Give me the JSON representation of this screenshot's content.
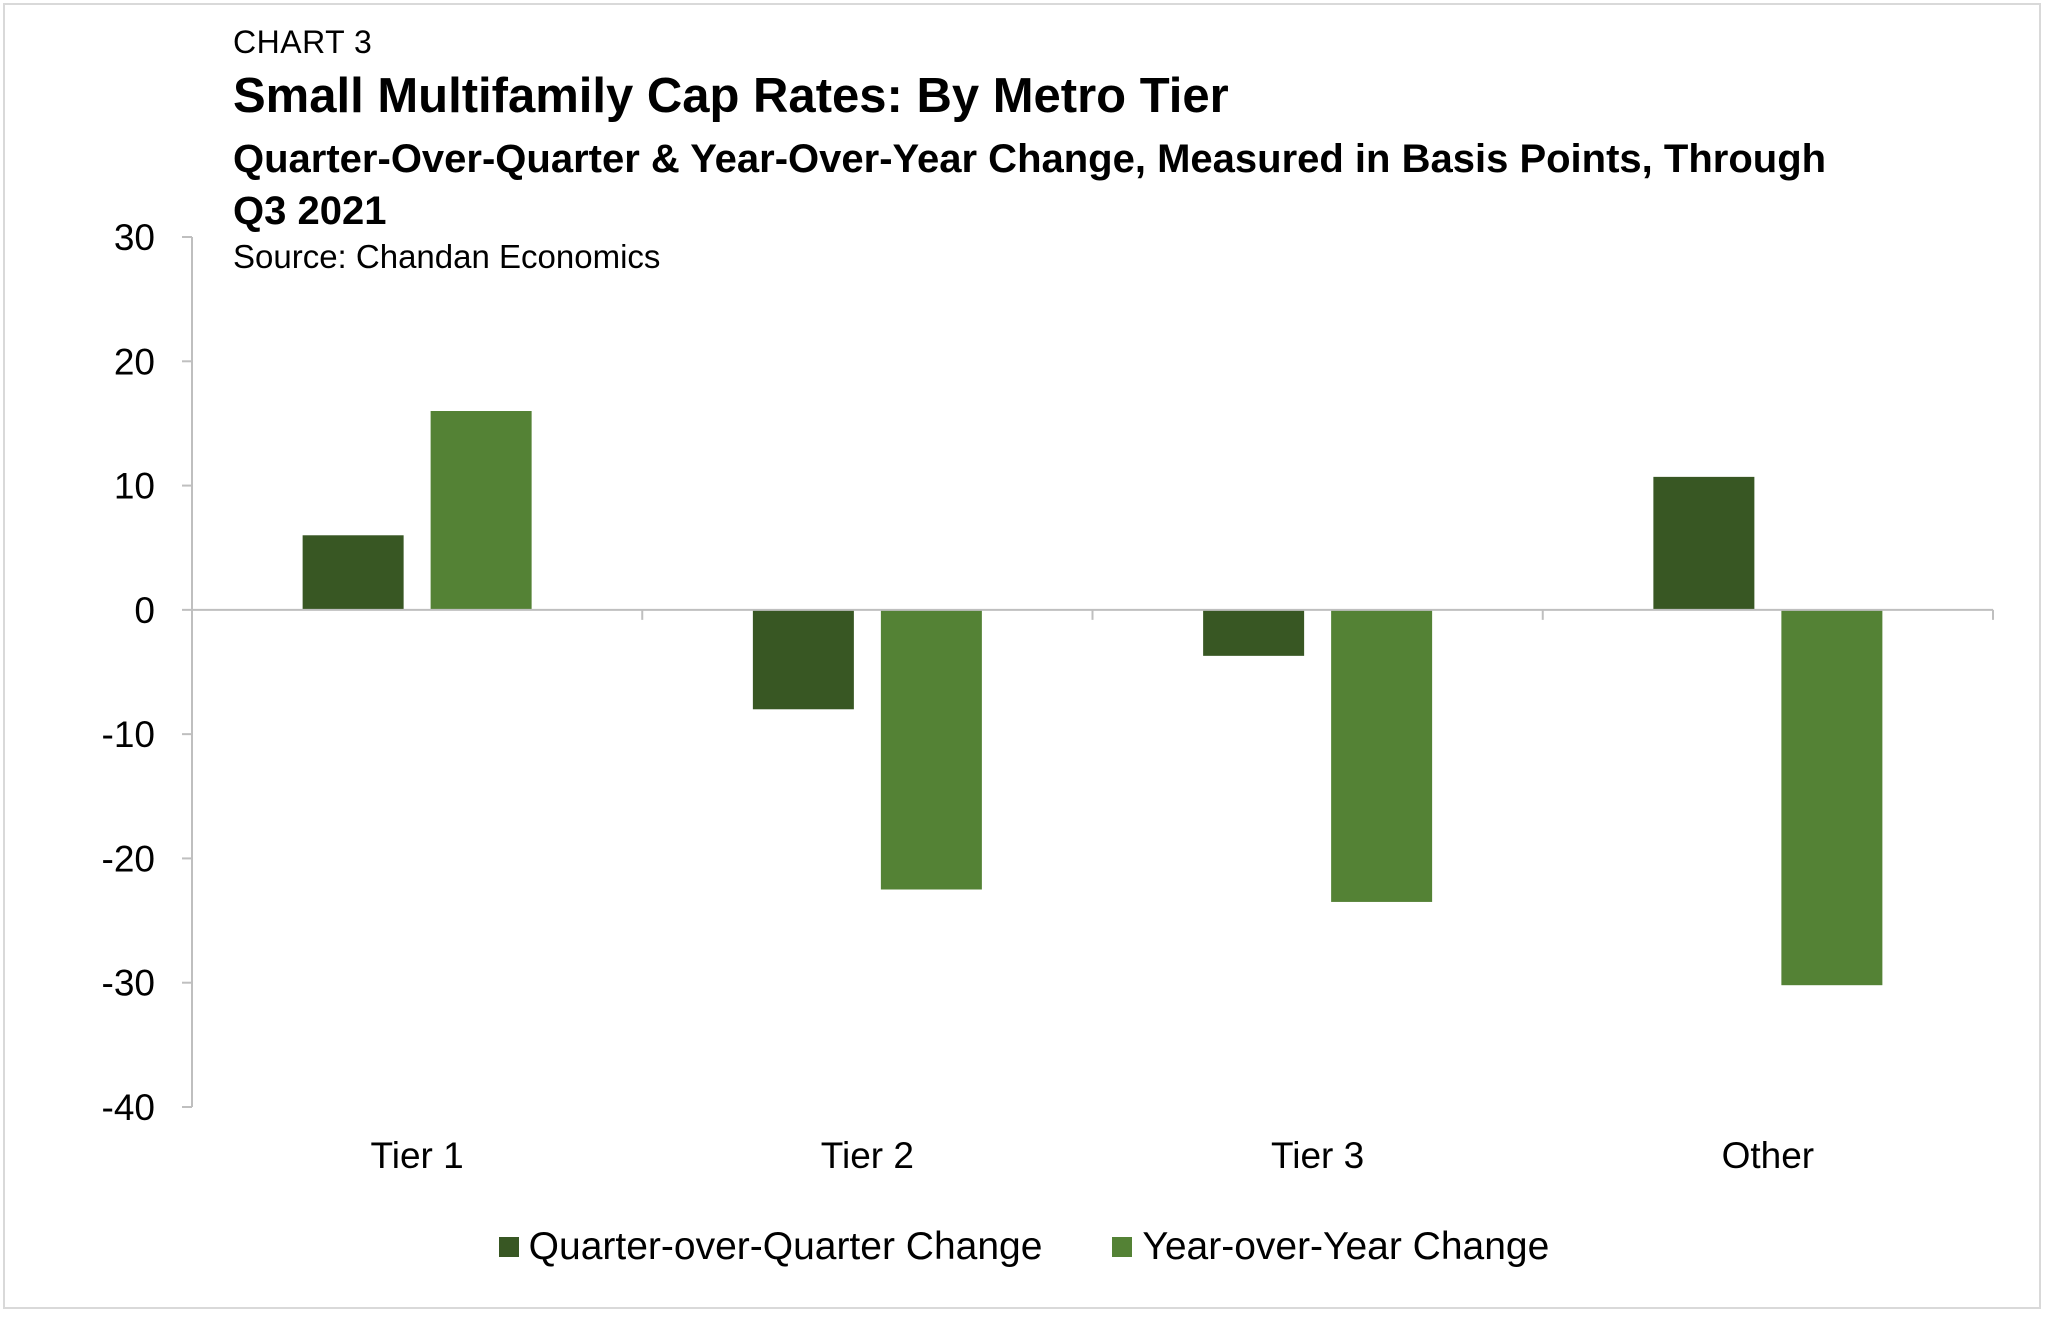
{
  "header": {
    "chart_label": "CHART 3",
    "title": "Small Multifamily Cap Rates: By Metro Tier",
    "subtitle": "Quarter-Over-Quarter & Year-Over-Year Change, Measured in Basis Points, Through Q3 2021",
    "source": "Source: Chandan Economics"
  },
  "colors": {
    "qoq": "#385723",
    "yoy": "#548235",
    "axis": "#bfbfbf"
  },
  "chart_data": {
    "type": "bar",
    "categories": [
      "Tier 1",
      "Tier 2",
      "Tier 3",
      "Other"
    ],
    "series": [
      {
        "name": "Quarter-over-Quarter Change",
        "values": [
          6,
          -8,
          -3.7,
          10.7
        ]
      },
      {
        "name": "Year-over-Year Change",
        "values": [
          16,
          -22.5,
          -23.5,
          -30.2
        ]
      }
    ],
    "ylim": [
      -40,
      30
    ],
    "yticks": [
      "30",
      "20",
      "10",
      "0",
      "-10",
      "-20",
      "-30",
      "-40"
    ],
    "legend_position": "bottom",
    "grid": false
  }
}
